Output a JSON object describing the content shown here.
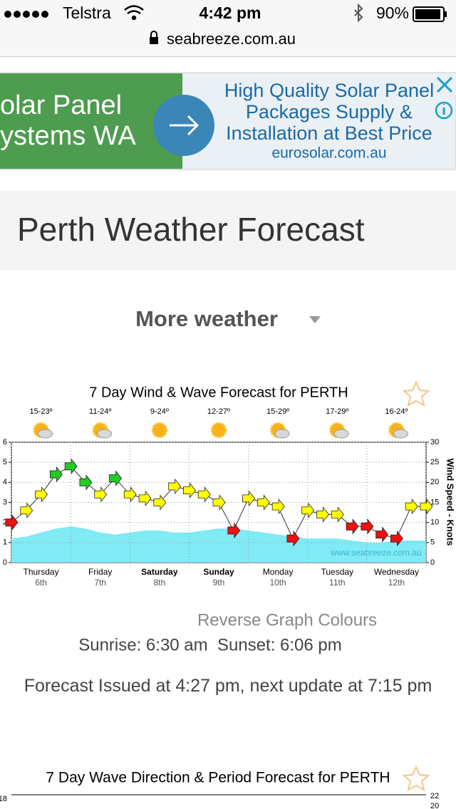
{
  "status_bar": {
    "carrier": "Telstra",
    "time": "4:42 pm",
    "battery": "90%"
  },
  "url": "seabreeze.com.au",
  "ad": {
    "left_lines": [
      "olar Panel",
      "ystems WA"
    ],
    "right_lines": [
      "High Quality Solar Panel",
      "Packages Supply &",
      "Installation at Best Price"
    ],
    "domain": "eurosolar.com.au"
  },
  "page_title": "Perth Weather Forecast",
  "menu": "More weather",
  "wind_chart": {
    "type": "line",
    "title": "7 Day Wind & Wave Forecast for PERTH",
    "days": [
      "Thursday",
      "Friday",
      "Saturday",
      "Sunday",
      "Monday",
      "Tuesday",
      "Wednesday"
    ],
    "bold": [
      false,
      false,
      true,
      true,
      false,
      false,
      false
    ],
    "dates": [
      "6th",
      "7th",
      "8th",
      "9th",
      "10th",
      "11th",
      "12th"
    ],
    "temps": [
      "15-23º",
      "11-24º",
      "9-24º",
      "12-27º",
      "15-29º",
      "17-29º",
      "16-24º"
    ],
    "x": [
      0,
      6,
      12,
      18,
      24,
      30,
      36,
      42,
      48,
      54,
      60,
      66,
      72,
      78,
      84,
      90,
      96,
      102,
      108,
      114,
      120,
      126,
      132,
      138,
      144,
      150,
      156,
      162,
      168
    ],
    "xlim": [
      0,
      168
    ],
    "series": [
      {
        "axis": "y2",
        "color_levels": [
          {
            "from": 0,
            "color": "#ee1111"
          },
          {
            "from": 12,
            "color": "#ffff00"
          },
          {
            "from": 20,
            "color": "#22cc22"
          }
        ],
        "values": [
          10,
          13,
          17,
          22,
          24,
          20,
          17,
          21,
          17,
          16,
          15,
          19,
          18,
          17,
          15,
          8,
          16,
          15,
          14,
          6,
          13,
          12,
          12,
          9,
          9,
          7,
          6,
          14,
          14
        ]
      },
      {
        "color": "#80eaf5",
        "values": [
          1.2,
          1.3,
          1.5,
          1.7,
          1.8,
          1.7,
          1.5,
          1.4,
          1.5,
          1.6,
          1.6,
          1.5,
          1.5,
          1.6,
          1.7,
          1.7,
          1.6,
          1.5,
          1.4,
          1.3,
          1.2,
          1.2,
          1.2,
          1.1,
          1.0,
          1.0,
          1.1,
          1.1,
          1.1
        ]
      }
    ],
    "ylim": [
      0,
      6
    ],
    "yticks": [
      0,
      1,
      2,
      3,
      4,
      5,
      6
    ],
    "y2lim": [
      0,
      30
    ],
    "y2ticks": [
      0,
      5,
      10,
      15,
      20,
      25,
      30
    ],
    "y2label": "Wind Speed - Knots",
    "watermark": "www.seabreeze.com.au",
    "grid": true
  },
  "reverse_link": "Reverse Graph Colours",
  "sun": "Sunrise: 6:30 am  Sunset: 6:06 pm",
  "forecast_note": "Forecast Issued at 4:27 pm, next update at 7:15 pm",
  "wave_chart": {
    "title": "7 Day Wave Direction & Period Forecast for PERTH",
    "yticks": [
      18
    ],
    "y2ticks": [
      22,
      20
    ]
  }
}
